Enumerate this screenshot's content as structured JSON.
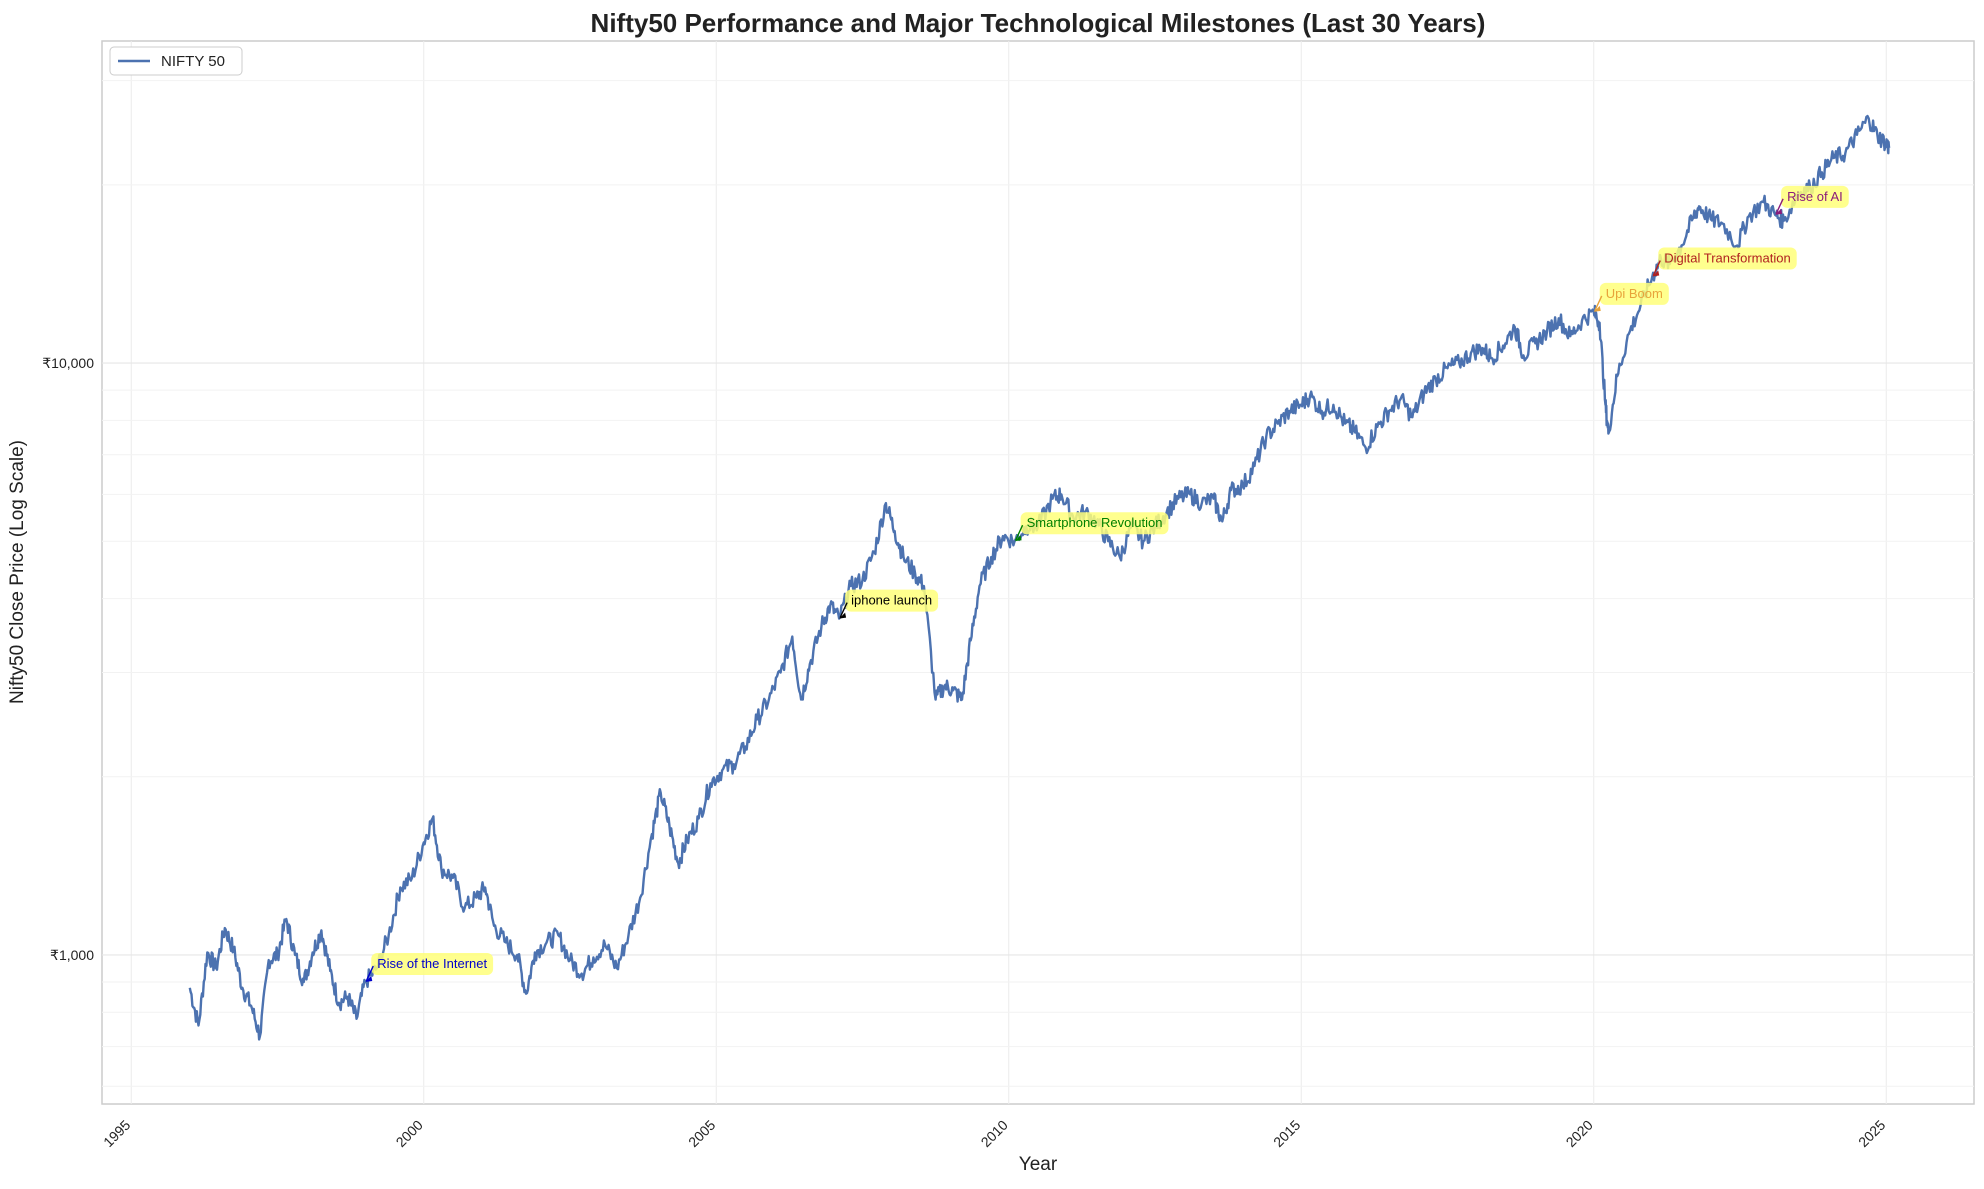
{
  "chart_data": {
    "type": "line",
    "title": "Nifty50 Performance and Major Technological Milestones (Last 30 Years)",
    "xlabel": "Year",
    "ylabel": "Nifty50 Close Price (Log Scale)",
    "y_scale": "log",
    "ylim": [
      560,
      35000
    ],
    "xlim": [
      1994.5,
      2026.5
    ],
    "grid": true,
    "legend_position": "top-left",
    "x_ticks": [
      "1995",
      "2000",
      "2005",
      "2010",
      "2015",
      "2020",
      "2025"
    ],
    "y_ticks": [
      "₹1,000",
      "₹10,000"
    ],
    "series": [
      {
        "name": "NIFTY 50",
        "color": "#4c72b0",
        "points": [
          [
            1996.0,
            880
          ],
          [
            1996.15,
            760
          ],
          [
            1996.3,
            1010
          ],
          [
            1996.45,
            950
          ],
          [
            1996.6,
            1110
          ],
          [
            1996.75,
            1020
          ],
          [
            1996.9,
            880
          ],
          [
            1997.05,
            820
          ],
          [
            1997.2,
            730
          ],
          [
            1997.35,
            980
          ],
          [
            1997.5,
            1000
          ],
          [
            1997.65,
            1150
          ],
          [
            1997.8,
            1000
          ],
          [
            1997.95,
            900
          ],
          [
            1998.1,
            1010
          ],
          [
            1998.25,
            1100
          ],
          [
            1998.4,
            940
          ],
          [
            1998.55,
            830
          ],
          [
            1998.7,
            850
          ],
          [
            1998.85,
            780
          ],
          [
            1999.0,
            900
          ],
          [
            1999.2,
            950
          ],
          [
            1999.4,
            1080
          ],
          [
            1999.6,
            1300
          ],
          [
            1999.8,
            1350
          ],
          [
            2000.0,
            1550
          ],
          [
            2000.15,
            1700
          ],
          [
            2000.3,
            1400
          ],
          [
            2000.5,
            1350
          ],
          [
            2000.7,
            1200
          ],
          [
            2000.9,
            1250
          ],
          [
            2001.05,
            1300
          ],
          [
            2001.2,
            1120
          ],
          [
            2001.4,
            1050
          ],
          [
            2001.6,
            1000
          ],
          [
            2001.75,
            860
          ],
          [
            2001.9,
            1010
          ],
          [
            2002.1,
            1050
          ],
          [
            2002.3,
            1080
          ],
          [
            2002.5,
            980
          ],
          [
            2002.7,
            930
          ],
          [
            2002.9,
            990
          ],
          [
            2003.1,
            1040
          ],
          [
            2003.3,
            950
          ],
          [
            2003.5,
            1080
          ],
          [
            2003.7,
            1250
          ],
          [
            2003.9,
            1600
          ],
          [
            2004.05,
            1880
          ],
          [
            2004.2,
            1650
          ],
          [
            2004.35,
            1430
          ],
          [
            2004.5,
            1560
          ],
          [
            2004.7,
            1700
          ],
          [
            2004.9,
            1950
          ],
          [
            2005.1,
            2050
          ],
          [
            2005.3,
            2100
          ],
          [
            2005.5,
            2250
          ],
          [
            2005.7,
            2500
          ],
          [
            2005.9,
            2700
          ],
          [
            2006.1,
            3000
          ],
          [
            2006.3,
            3450
          ],
          [
            2006.45,
            2700
          ],
          [
            2006.6,
            3100
          ],
          [
            2006.8,
            3600
          ],
          [
            2006.95,
            3900
          ],
          [
            2007.1,
            3700
          ],
          [
            2007.3,
            4200
          ],
          [
            2007.5,
            4300
          ],
          [
            2007.7,
            4800
          ],
          [
            2007.9,
            5800
          ],
          [
            2008.05,
            5200
          ],
          [
            2008.2,
            4700
          ],
          [
            2008.4,
            4400
          ],
          [
            2008.55,
            4200
          ],
          [
            2008.75,
            2700
          ],
          [
            2008.9,
            2850
          ],
          [
            2009.05,
            2800
          ],
          [
            2009.2,
            2700
          ],
          [
            2009.35,
            3400
          ],
          [
            2009.5,
            4200
          ],
          [
            2009.7,
            4700
          ],
          [
            2009.9,
            5100
          ],
          [
            2010.1,
            5000
          ],
          [
            2010.3,
            5300
          ],
          [
            2010.5,
            5300
          ],
          [
            2010.75,
            5900
          ],
          [
            2010.9,
            6000
          ],
          [
            2011.1,
            5500
          ],
          [
            2011.3,
            5600
          ],
          [
            2011.5,
            5400
          ],
          [
            2011.7,
            5000
          ],
          [
            2011.9,
            4700
          ],
          [
            2012.1,
            5300
          ],
          [
            2012.3,
            5000
          ],
          [
            2012.5,
            5300
          ],
          [
            2012.7,
            5600
          ],
          [
            2012.9,
            5900
          ],
          [
            2013.1,
            6000
          ],
          [
            2013.3,
            5800
          ],
          [
            2013.5,
            5900
          ],
          [
            2013.65,
            5400
          ],
          [
            2013.8,
            6100
          ],
          [
            2014.0,
            6200
          ],
          [
            2014.2,
            6700
          ],
          [
            2014.4,
            7500
          ],
          [
            2014.6,
            7900
          ],
          [
            2014.8,
            8300
          ],
          [
            2015.0,
            8500
          ],
          [
            2015.15,
            8800
          ],
          [
            2015.35,
            8300
          ],
          [
            2015.55,
            8500
          ],
          [
            2015.75,
            7900
          ],
          [
            2015.9,
            7700
          ],
          [
            2016.1,
            7200
          ],
          [
            2016.3,
            7800
          ],
          [
            2016.5,
            8300
          ],
          [
            2016.7,
            8700
          ],
          [
            2016.9,
            8100
          ],
          [
            2017.1,
            8900
          ],
          [
            2017.3,
            9400
          ],
          [
            2017.5,
            9800
          ],
          [
            2017.7,
            10000
          ],
          [
            2017.9,
            10400
          ],
          [
            2018.1,
            10600
          ],
          [
            2018.25,
            10200
          ],
          [
            2018.45,
            10700
          ],
          [
            2018.65,
            11500
          ],
          [
            2018.8,
            10300
          ],
          [
            2019.0,
            10800
          ],
          [
            2019.2,
            11300
          ],
          [
            2019.4,
            11900
          ],
          [
            2019.6,
            11100
          ],
          [
            2019.8,
            11800
          ],
          [
            2020.0,
            12200
          ],
          [
            2020.1,
            11700
          ],
          [
            2020.2,
            8500
          ],
          [
            2020.25,
            7600
          ],
          [
            2020.4,
            9500
          ],
          [
            2020.6,
            11200
          ],
          [
            2020.8,
            12500
          ],
          [
            2021.0,
            14000
          ],
          [
            2021.15,
            15000
          ],
          [
            2021.3,
            14700
          ],
          [
            2021.5,
            15800
          ],
          [
            2021.7,
            17600
          ],
          [
            2021.8,
            18400
          ],
          [
            2022.0,
            17500
          ],
          [
            2022.2,
            17200
          ],
          [
            2022.45,
            15800
          ],
          [
            2022.65,
            17700
          ],
          [
            2022.9,
            18700
          ],
          [
            2023.1,
            17800
          ],
          [
            2023.25,
            17400
          ],
          [
            2023.5,
            19400
          ],
          [
            2023.7,
            19800
          ],
          [
            2023.9,
            21000
          ],
          [
            2024.1,
            22200
          ],
          [
            2024.3,
            22600
          ],
          [
            2024.5,
            24300
          ],
          [
            2024.7,
            25900
          ],
          [
            2024.85,
            24200
          ],
          [
            2025.0,
            23500
          ],
          [
            2025.05,
            23100
          ]
        ]
      }
    ],
    "annotations": [
      {
        "text": "Rise of the Internet",
        "x": 1999.0,
        "y": 900,
        "color": "#0000cc"
      },
      {
        "text": "iphone launch",
        "x": 2007.1,
        "y": 3700,
        "color": "#000000"
      },
      {
        "text": "Smartphone Revolution",
        "x": 2010.1,
        "y": 5000,
        "color": "#008000"
      },
      {
        "text": "Upi Boom",
        "x": 2020.0,
        "y": 12200,
        "color": "#e8a33a"
      },
      {
        "text": "Digital Transformation",
        "x": 2021.0,
        "y": 14000,
        "color": "#b02020"
      },
      {
        "text": "Rise of AI",
        "x": 2023.1,
        "y": 17800,
        "color": "#8b1a7a"
      }
    ],
    "annotation_box_color": "#ffff7a"
  }
}
